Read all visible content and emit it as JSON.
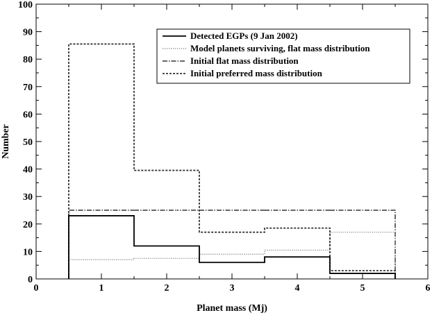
{
  "chart_data": {
    "type": "line",
    "title": "",
    "xlabel": "Planet mass (Mj)",
    "ylabel": "Number",
    "xlim": [
      0,
      6
    ],
    "ylim": [
      0,
      100
    ],
    "x_ticks": [
      0,
      1,
      2,
      3,
      4,
      5,
      6
    ],
    "y_ticks": [
      0,
      10,
      20,
      30,
      40,
      50,
      60,
      70,
      80,
      90,
      100
    ],
    "grid": false,
    "legend_position": "top-right",
    "bin_edges": [
      0.5,
      1.5,
      2.5,
      3.5,
      4.5,
      5.5
    ],
    "series": [
      {
        "name": "Detected EGPs (9 Jan 2002)",
        "values": [
          23,
          12,
          6,
          8,
          2
        ],
        "style": "solid",
        "color": "#000000"
      },
      {
        "name": "Model planets surviving, flat mass distribution",
        "values": [
          7,
          7.5,
          9,
          10.5,
          17
        ],
        "style": "dotted",
        "color": "#777777"
      },
      {
        "name": "Initial flat mass distribution",
        "values": [
          25,
          25,
          25,
          25,
          25
        ],
        "style": "dashdot",
        "color": "#333333"
      },
      {
        "name": "Initial preferred mass distribution",
        "values": [
          85.5,
          39.5,
          17,
          18.5,
          3
        ],
        "style": "dashed",
        "color": "#333333"
      }
    ]
  }
}
